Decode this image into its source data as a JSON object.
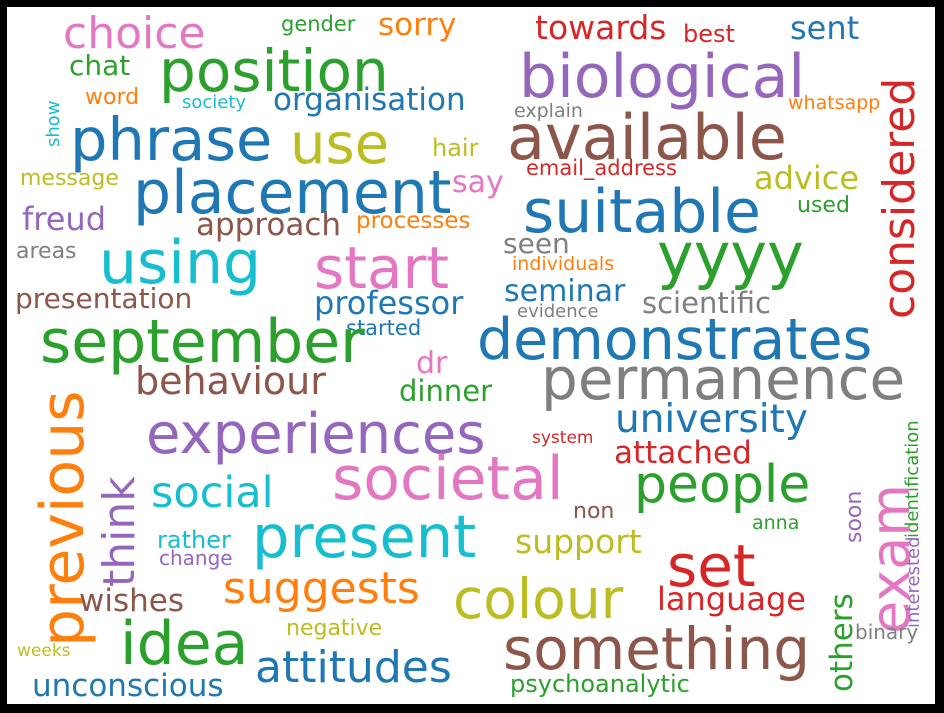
{
  "palette": {
    "blue": "#1f77b4",
    "orange": "#ff7f0e",
    "green": "#2ca02c",
    "red": "#d62728",
    "purple": "#9467bd",
    "brown": "#8c564b",
    "pink": "#e377c2",
    "gray": "#7f7f7f",
    "olive": "#bcbd22",
    "cyan": "#17becf"
  },
  "words": [
    "choice",
    "gender",
    "sorry",
    "towards",
    "best",
    "sent",
    "position",
    "biological",
    "chat",
    "word",
    "society",
    "organisation",
    "explain",
    "whatsapp",
    "show",
    "phrase",
    "use",
    "available",
    "considered",
    "hair",
    "message",
    "email_address",
    "say",
    "placement",
    "advice",
    "suitable",
    "freud",
    "approach",
    "processes",
    "used",
    "areas",
    "seen",
    "using",
    "start",
    "yyyy",
    "individuals",
    "presentation",
    "professor",
    "seminar",
    "scientific",
    "evidence",
    "started",
    "september",
    "demonstrates",
    "dr",
    "behaviour",
    "permanence",
    "dinner",
    "previous",
    "identification",
    "university",
    "experiences",
    "system",
    "attached",
    "think",
    "societal",
    "people",
    "social",
    "exam",
    "present",
    "interested",
    "non",
    "anna",
    "soon",
    "rather",
    "support",
    "change",
    "set",
    "suggests",
    "colour",
    "wishes",
    "language",
    "others",
    "idea",
    "negative",
    "binary",
    "something",
    "weeks",
    "attitudes",
    "unconscious",
    "psychoanalytic"
  ]
}
